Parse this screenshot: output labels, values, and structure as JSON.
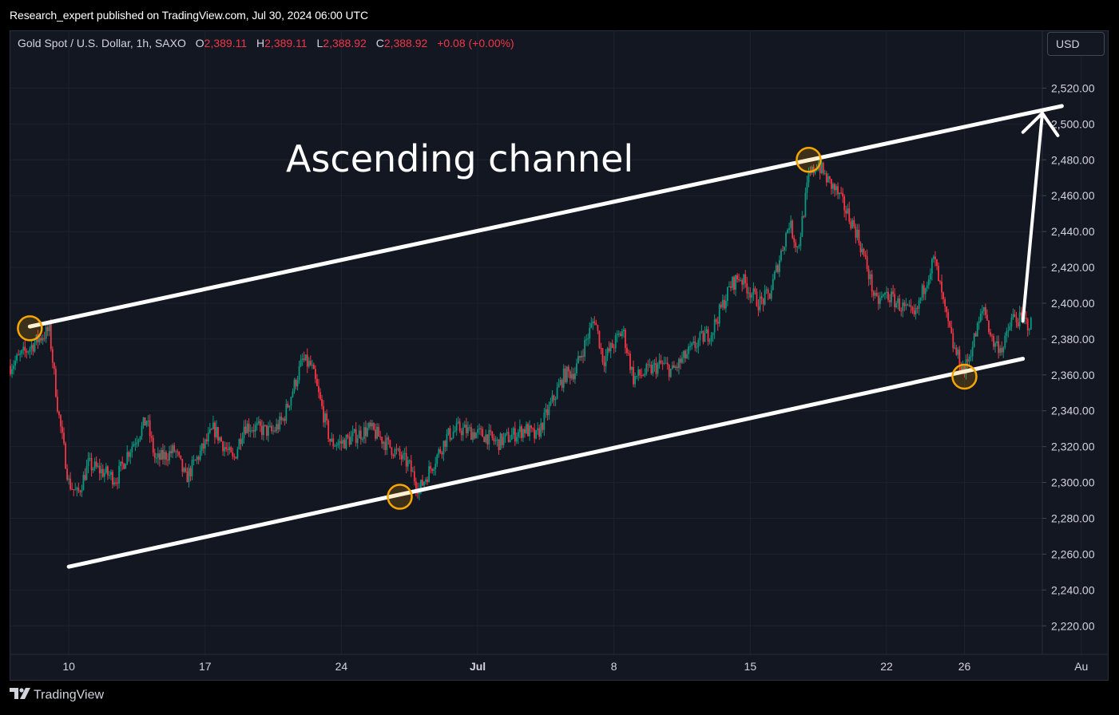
{
  "header": {
    "publisher_line": "Research_expert published on TradingView.com, Jul 30, 2024 06:00 UTC"
  },
  "legend": {
    "symbol": "Gold Spot / U.S. Dollar, 1h, SAXO",
    "open_label": "O",
    "open": "2,389.11",
    "high_label": "H",
    "high": "2,389.11",
    "low_label": "L",
    "low": "2,388.92",
    "close_label": "C",
    "close": "2,388.92",
    "change": "+0.08 (+0.00%)"
  },
  "currency_button": "USD",
  "footer": {
    "brand": "TradingView",
    "logo_icon": "tradingview-logo-icon"
  },
  "annotation": {
    "text": "Ascending channel"
  },
  "colors": {
    "background": "#131722",
    "up_candle": "#089981",
    "down_candle": "#f23645",
    "channel_line": "#ffffff",
    "marker": "#f7a600"
  },
  "chart_data": {
    "type": "candlestick",
    "title": "Gold Spot / U.S. Dollar, 1h, SAXO",
    "y_axis": {
      "range": [
        2213,
        2538
      ],
      "ticks": [
        "2,220.00",
        "2,240.00",
        "2,260.00",
        "2,280.00",
        "2,300.00",
        "2,320.00",
        "2,340.00",
        "2,360.00",
        "2,380.00",
        "2,400.00",
        "2,420.00",
        "2,440.00",
        "2,460.00",
        "2,480.00",
        "2,500.00",
        "2,520.00"
      ]
    },
    "x_axis": {
      "range": [
        "2024-06-07",
        "2024-07-30"
      ],
      "ticks": [
        {
          "label": "10",
          "date": "2024-06-10"
        },
        {
          "label": "17",
          "date": "2024-06-17"
        },
        {
          "label": "24",
          "date": "2024-06-24"
        },
        {
          "label": "Jul",
          "date": "2024-07-01"
        },
        {
          "label": "8",
          "date": "2024-07-08"
        },
        {
          "label": "15",
          "date": "2024-07-15"
        },
        {
          "label": "22",
          "date": "2024-07-22"
        },
        {
          "label": "26",
          "date": "2024-07-26"
        },
        {
          "label": "Au",
          "date": "2024-08-01"
        }
      ]
    },
    "grid": true,
    "price_path": [
      {
        "date": "2024-06-07",
        "price": 2365
      },
      {
        "date": "2024-06-08",
        "price": 2380
      },
      {
        "date": "2024-06-09",
        "price": 2385
      },
      {
        "date": "2024-06-09",
        "price": 2340
      },
      {
        "date": "2024-06-10",
        "price": 2300
      },
      {
        "date": "2024-06-10",
        "price": 2293
      },
      {
        "date": "2024-06-11",
        "price": 2310
      },
      {
        "date": "2024-06-12",
        "price": 2302
      },
      {
        "date": "2024-06-13",
        "price": 2316
      },
      {
        "date": "2024-06-14",
        "price": 2312
      },
      {
        "date": "2024-06-14",
        "price": 2335
      },
      {
        "date": "2024-06-15",
        "price": 2318
      },
      {
        "date": "2024-06-16",
        "price": 2302
      },
      {
        "date": "2024-06-17",
        "price": 2330
      },
      {
        "date": "2024-06-18",
        "price": 2320
      },
      {
        "date": "2024-06-18",
        "price": 2312
      },
      {
        "date": "2024-06-19",
        "price": 2332
      },
      {
        "date": "2024-06-20",
        "price": 2328
      },
      {
        "date": "2024-06-21",
        "price": 2335
      },
      {
        "date": "2024-06-22",
        "price": 2365
      },
      {
        "date": "2024-06-22",
        "price": 2368
      },
      {
        "date": "2024-06-23",
        "price": 2322
      },
      {
        "date": "2024-06-24",
        "price": 2322
      },
      {
        "date": "2024-06-25",
        "price": 2330
      },
      {
        "date": "2024-06-26",
        "price": 2325
      },
      {
        "date": "2024-06-27",
        "price": 2310
      },
      {
        "date": "2024-06-28",
        "price": 2296
      },
      {
        "date": "2024-06-29",
        "price": 2326
      },
      {
        "date": "2024-06-30",
        "price": 2330
      },
      {
        "date": "2024-07-01",
        "price": 2326
      },
      {
        "date": "2024-07-02",
        "price": 2322
      },
      {
        "date": "2024-07-03",
        "price": 2330
      },
      {
        "date": "2024-07-04",
        "price": 2325
      },
      {
        "date": "2024-07-05",
        "price": 2360
      },
      {
        "date": "2024-07-06",
        "price": 2362
      },
      {
        "date": "2024-07-07",
        "price": 2368
      },
      {
        "date": "2024-07-07",
        "price": 2392
      },
      {
        "date": "2024-07-08",
        "price": 2385
      },
      {
        "date": "2024-07-09",
        "price": 2358
      },
      {
        "date": "2024-07-10",
        "price": 2366
      },
      {
        "date": "2024-07-11",
        "price": 2362
      },
      {
        "date": "2024-07-12",
        "price": 2380
      },
      {
        "date": "2024-07-13",
        "price": 2384
      },
      {
        "date": "2024-07-14",
        "price": 2415
      },
      {
        "date": "2024-07-14",
        "price": 2410
      },
      {
        "date": "2024-07-15",
        "price": 2400
      },
      {
        "date": "2024-07-16",
        "price": 2405
      },
      {
        "date": "2024-07-17",
        "price": 2430
      },
      {
        "date": "2024-07-17",
        "price": 2445
      },
      {
        "date": "2024-07-18",
        "price": 2478
      },
      {
        "date": "2024-07-18",
        "price": 2470
      },
      {
        "date": "2024-07-19",
        "price": 2462
      },
      {
        "date": "2024-07-19",
        "price": 2468
      },
      {
        "date": "2024-07-20",
        "price": 2440
      },
      {
        "date": "2024-07-21",
        "price": 2420
      },
      {
        "date": "2024-07-21",
        "price": 2400
      },
      {
        "date": "2024-07-22",
        "price": 2405
      },
      {
        "date": "2024-07-23",
        "price": 2392
      },
      {
        "date": "2024-07-24",
        "price": 2412
      },
      {
        "date": "2024-07-24",
        "price": 2425
      },
      {
        "date": "2024-07-25",
        "price": 2395
      },
      {
        "date": "2024-07-25",
        "price": 2375
      },
      {
        "date": "2024-07-26",
        "price": 2362
      },
      {
        "date": "2024-07-27",
        "price": 2378
      },
      {
        "date": "2024-07-27",
        "price": 2398
      },
      {
        "date": "2024-07-28",
        "price": 2392
      },
      {
        "date": "2024-07-28",
        "price": 2375
      },
      {
        "date": "2024-07-29",
        "price": 2388
      }
    ],
    "channel": {
      "upper": [
        {
          "date": "2024-06-08",
          "price": 2387
        },
        {
          "date": "2024-07-31",
          "price": 2510
        }
      ],
      "lower": [
        {
          "date": "2024-06-10",
          "price": 2253
        },
        {
          "date": "2024-07-29",
          "price": 2369
        }
      ]
    },
    "touch_points": [
      {
        "date": "2024-06-08",
        "price": 2386
      },
      {
        "date": "2024-06-27",
        "price": 2292
      },
      {
        "date": "2024-07-18",
        "price": 2480
      },
      {
        "date": "2024-07-26",
        "price": 2359
      }
    ],
    "projection_arrow": {
      "from": {
        "date": "2024-07-29",
        "price": 2390
      },
      "to": {
        "date": "2024-07-30",
        "price": 2506
      }
    }
  }
}
